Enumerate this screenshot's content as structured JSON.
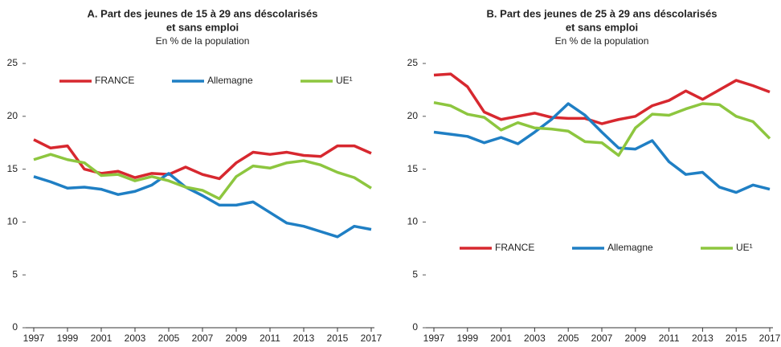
{
  "chart_data": [
    {
      "type": "line",
      "title": [
        "A. Part des jeunes de 15 à 29 ans déscolarisés",
        "et sans emploi"
      ],
      "subtitle": "En % de la population",
      "x": [
        1997,
        1998,
        1999,
        2000,
        2001,
        2002,
        2003,
        2004,
        2005,
        2006,
        2007,
        2008,
        2009,
        2010,
        2011,
        2012,
        2013,
        2014,
        2015,
        2016,
        2017
      ],
      "xlim": [
        1997,
        2017
      ],
      "xticks": [
        1997,
        1999,
        2001,
        2003,
        2005,
        2007,
        2009,
        2011,
        2013,
        2015,
        2017
      ],
      "ylim": [
        0,
        25
      ],
      "yticks": [
        0,
        5,
        10,
        15,
        20,
        25
      ],
      "grid": false,
      "legend": "top",
      "series": [
        {
          "name": "FRANCE",
          "color": "#d7282f",
          "values": [
            17.8,
            17.0,
            17.2,
            15.0,
            14.6,
            14.8,
            14.2,
            14.6,
            14.5,
            15.2,
            14.5,
            14.1,
            15.6,
            16.6,
            16.4,
            16.6,
            16.3,
            16.2,
            17.2,
            17.2,
            16.5
          ]
        },
        {
          "name": "Allemagne",
          "color": "#1f7fc4",
          "values": [
            14.3,
            13.8,
            13.2,
            13.3,
            13.1,
            12.6,
            12.9,
            13.5,
            14.6,
            13.3,
            12.5,
            11.6,
            11.6,
            11.9,
            10.9,
            9.9,
            9.6,
            9.1,
            8.6,
            9.6,
            9.3
          ]
        },
        {
          "name": "UE¹",
          "color": "#8dc63f",
          "values": [
            15.9,
            16.4,
            15.9,
            15.6,
            14.4,
            14.5,
            13.9,
            14.3,
            13.9,
            13.3,
            13.0,
            12.2,
            14.3,
            15.3,
            15.1,
            15.6,
            15.8,
            15.4,
            14.7,
            14.2,
            13.2
          ]
        }
      ]
    },
    {
      "type": "line",
      "title": [
        "B. Part des jeunes de 25 à 29 ans déscolarisés",
        "et sans emploi"
      ],
      "subtitle": "En % de la population",
      "x": [
        1997,
        1998,
        1999,
        2000,
        2001,
        2002,
        2003,
        2004,
        2005,
        2006,
        2007,
        2008,
        2009,
        2010,
        2011,
        2012,
        2013,
        2014,
        2015,
        2016,
        2017
      ],
      "xlim": [
        1997,
        2017
      ],
      "xticks": [
        1997,
        1999,
        2001,
        2003,
        2005,
        2007,
        2009,
        2011,
        2013,
        2015,
        2017
      ],
      "ylim": [
        0,
        25
      ],
      "yticks": [
        0,
        5,
        10,
        15,
        20,
        25
      ],
      "grid": false,
      "legend": "bottom",
      "series": [
        {
          "name": "FRANCE",
          "color": "#d7282f",
          "values": [
            23.9,
            24.0,
            22.8,
            20.4,
            19.7,
            20.0,
            20.3,
            19.9,
            19.8,
            19.8,
            19.3,
            19.7,
            20.0,
            21.0,
            21.5,
            22.4,
            21.6,
            22.5,
            23.4,
            22.9,
            22.3
          ]
        },
        {
          "name": "Allemagne",
          "color": "#1f7fc4",
          "values": [
            18.5,
            18.3,
            18.1,
            17.5,
            18.0,
            17.4,
            18.5,
            19.7,
            21.2,
            20.1,
            18.5,
            17.0,
            16.9,
            17.7,
            15.7,
            14.5,
            14.7,
            13.3,
            12.8,
            13.5,
            13.1
          ]
        },
        {
          "name": "UE¹",
          "color": "#8dc63f",
          "values": [
            21.3,
            21.0,
            20.2,
            19.9,
            18.7,
            19.4,
            18.9,
            18.8,
            18.6,
            17.6,
            17.5,
            16.3,
            18.9,
            20.2,
            20.1,
            20.7,
            21.2,
            21.1,
            20.0,
            19.5,
            17.9
          ]
        }
      ]
    }
  ]
}
